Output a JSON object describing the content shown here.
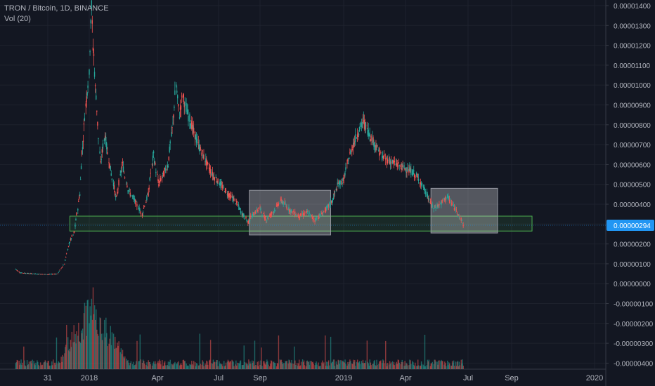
{
  "header": {
    "title": "TRON / Bitcoin, 1D, BINANCE",
    "volume_label": "Vol (20)"
  },
  "colors": {
    "background": "#131722",
    "grid": "#1e222d",
    "up": "#26a69a",
    "down": "#ef5350",
    "axis_text": "#b2b5be",
    "support_zone": "#4caf50",
    "range_box": "#9598a1",
    "price_label_bg": "#2196f3"
  },
  "chart_data": {
    "type": "candlestick",
    "symbol": "TRON / Bitcoin",
    "interval": "1D",
    "exchange": "BINANCE",
    "price_axis_labels": [
      "0.00001400",
      "0.00001300",
      "0.00001200",
      "0.00001100",
      "0.00001000",
      "0.00000900",
      "0.00000800",
      "0.00000700",
      "0.00000600",
      "0.00000500",
      "0.00000400",
      "0.00000300",
      "0.00000200",
      "0.00000100",
      "0.00000000",
      "-0.00000100",
      "-0.00000200",
      "-0.00000300",
      "-0.00000400"
    ],
    "time_axis_labels": [
      "31",
      "2018",
      "Apr",
      "Jul",
      "Sep",
      "2019",
      "Apr",
      "Jul",
      "Sep",
      "2020"
    ],
    "last_price_label": "0.00000294",
    "grid": true,
    "price_path": [
      [
        "2017-09-13",
        7.5e-07
      ],
      [
        "2017-09-20",
        5.5e-07
      ],
      [
        "2017-10-10",
        5e-07
      ],
      [
        "2017-10-31",
        4.7e-07
      ],
      [
        "2017-11-15",
        5e-07
      ],
      [
        "2017-11-25",
        1e-06
      ],
      [
        "2017-12-03",
        2.1e-06
      ],
      [
        "2017-12-10",
        2.6e-06
      ],
      [
        "2017-12-18",
        4.5e-06
      ],
      [
        "2017-12-22",
        6.8e-06
      ],
      [
        "2017-12-27",
        9e-06
      ],
      [
        "2018-01-01",
        1.05e-05
      ],
      [
        "2018-01-04",
        1.4e-05
      ],
      [
        "2018-01-07",
        1.15e-05
      ],
      [
        "2018-01-10",
        9.5e-06
      ],
      [
        "2018-01-16",
        6e-06
      ],
      [
        "2018-01-22",
        7.5e-06
      ],
      [
        "2018-01-28",
        6e-06
      ],
      [
        "2018-02-06",
        4.3e-06
      ],
      [
        "2018-02-14",
        6e-06
      ],
      [
        "2018-02-22",
        4.7e-06
      ],
      [
        "2018-03-02",
        4.2e-06
      ],
      [
        "2018-03-12",
        3.5e-06
      ],
      [
        "2018-03-20",
        4.5e-06
      ],
      [
        "2018-03-27",
        6.5e-06
      ],
      [
        "2018-04-03",
        5e-06
      ],
      [
        "2018-04-10",
        5.5e-06
      ],
      [
        "2018-04-17",
        6e-06
      ],
      [
        "2018-04-24",
        8e-06
      ],
      [
        "2018-04-29",
        1e-05
      ],
      [
        "2018-05-04",
        8.5e-06
      ],
      [
        "2018-05-09",
        9.5e-06
      ],
      [
        "2018-05-14",
        8.8e-06
      ],
      [
        "2018-05-22",
        8e-06
      ],
      [
        "2018-06-01",
        7e-06
      ],
      [
        "2018-06-12",
        6.2e-06
      ],
      [
        "2018-06-22",
        5.5e-06
      ],
      [
        "2018-07-04",
        5e-06
      ],
      [
        "2018-07-16",
        4.5e-06
      ],
      [
        "2018-07-26",
        4.2e-06
      ],
      [
        "2018-08-06",
        3.5e-06
      ],
      [
        "2018-08-15",
        3.1e-06
      ],
      [
        "2018-08-22",
        3.5e-06
      ],
      [
        "2018-09-01",
        3.8e-06
      ],
      [
        "2018-09-10",
        3.2e-06
      ],
      [
        "2018-09-20",
        3.6e-06
      ],
      [
        "2018-10-02",
        4.2e-06
      ],
      [
        "2018-10-15",
        3.7e-06
      ],
      [
        "2018-10-28",
        3.4e-06
      ],
      [
        "2018-11-10",
        3.6e-06
      ],
      [
        "2018-11-20",
        3.2e-06
      ],
      [
        "2018-11-30",
        3.5e-06
      ],
      [
        "2018-12-08",
        3.8e-06
      ],
      [
        "2018-12-16",
        4.2e-06
      ],
      [
        "2018-12-24",
        5e-06
      ],
      [
        "2019-01-01",
        5.2e-06
      ],
      [
        "2019-01-08",
        6.2e-06
      ],
      [
        "2019-01-15",
        7e-06
      ],
      [
        "2019-01-22",
        7.6e-06
      ],
      [
        "2019-01-30",
        8.2e-06
      ],
      [
        "2019-02-07",
        7.6e-06
      ],
      [
        "2019-02-16",
        7e-06
      ],
      [
        "2019-02-26",
        6.4e-06
      ],
      [
        "2019-03-08",
        6.2e-06
      ],
      [
        "2019-03-20",
        6e-06
      ],
      [
        "2019-04-01",
        5.8e-06
      ],
      [
        "2019-04-12",
        5.6e-06
      ],
      [
        "2019-04-22",
        5.2e-06
      ],
      [
        "2019-05-02",
        4.5e-06
      ],
      [
        "2019-05-12",
        3.8e-06
      ],
      [
        "2019-05-22",
        4e-06
      ],
      [
        "2019-06-01",
        4.4e-06
      ],
      [
        "2019-06-08",
        4e-06
      ],
      [
        "2019-06-16",
        3.6e-06
      ],
      [
        "2019-06-25",
        2.94e-06
      ]
    ],
    "volume_peak_date": "2018-01-04",
    "shapes": [
      {
        "kind": "support_zone",
        "label": "support-zone",
        "start": "2017-12-03",
        "end": "2019-10-01",
        "price_low": 2.65e-06,
        "price_high": 3.4e-06,
        "color": "#4caf50"
      },
      {
        "kind": "range_box",
        "label": "range-box-2018",
        "start": "2018-08-16",
        "end": "2018-12-13",
        "price_low": 2.45e-06,
        "price_high": 4.7e-06,
        "color": "#9598a1"
      },
      {
        "kind": "range_box",
        "label": "range-box-2019",
        "start": "2019-05-08",
        "end": "2019-08-12",
        "price_low": 2.55e-06,
        "price_high": 4.8e-06,
        "color": "#9598a1"
      }
    ]
  }
}
